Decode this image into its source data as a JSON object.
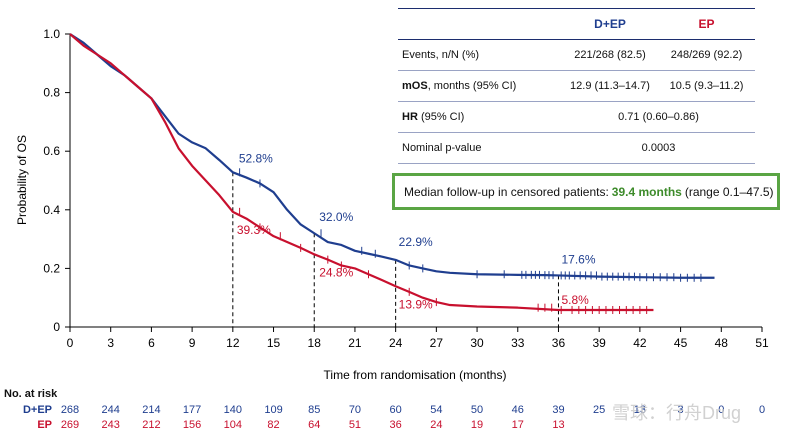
{
  "chart_data": {
    "type": "line",
    "xlabel": "Time from randomisation (months)",
    "ylabel": "Probability of OS",
    "xlim": [
      0,
      51
    ],
    "ylim": [
      0,
      1.0
    ],
    "xticks": [
      0,
      3,
      6,
      9,
      12,
      15,
      18,
      21,
      24,
      27,
      30,
      33,
      36,
      39,
      42,
      45,
      48,
      51
    ],
    "yticks": [
      0,
      0.2,
      0.4,
      0.6,
      0.8,
      1.0
    ],
    "ytick_labels": [
      "0",
      "0.2",
      "0.4",
      "0.6",
      "0.8",
      "1.0"
    ],
    "series": [
      {
        "name": "D+EP",
        "color": "#1f3e8f",
        "x": [
          0,
          1,
          2,
          3,
          4,
          5,
          6,
          7,
          8,
          9,
          10,
          11,
          12,
          13,
          14,
          15,
          16,
          17,
          18,
          19,
          20,
          21,
          22,
          23,
          24,
          25,
          26,
          27,
          28,
          30,
          33,
          35,
          36,
          39,
          42,
          45,
          47.5
        ],
        "y": [
          1.0,
          0.97,
          0.93,
          0.89,
          0.86,
          0.82,
          0.78,
          0.72,
          0.66,
          0.63,
          0.61,
          0.57,
          0.528,
          0.51,
          0.49,
          0.46,
          0.4,
          0.35,
          0.32,
          0.29,
          0.28,
          0.26,
          0.25,
          0.24,
          0.229,
          0.21,
          0.2,
          0.19,
          0.185,
          0.18,
          0.178,
          0.177,
          0.176,
          0.172,
          0.17,
          0.168,
          0.168
        ],
        "censor_x": [
          12.5,
          14,
          18.5,
          21.5,
          22.5,
          25,
          26,
          30,
          32,
          33.3,
          33.6,
          34,
          34.3,
          34.6,
          35,
          35.3,
          35.6,
          36.2,
          36.5,
          36.8,
          37.2,
          37.6,
          38,
          38.4,
          38.8,
          39.2,
          39.6,
          40,
          40.4,
          40.8,
          41.2,
          41.6,
          42,
          42.5,
          43,
          43.5,
          44,
          44.5,
          45,
          45.5,
          46,
          46.5
        ]
      },
      {
        "name": "EP",
        "color": "#c8102e",
        "x": [
          0,
          1,
          2,
          3,
          4,
          5,
          6,
          7,
          8,
          9,
          10,
          11,
          12,
          13,
          14,
          15,
          16,
          17,
          18,
          19,
          20,
          21,
          22,
          23,
          24,
          25,
          26,
          27,
          28,
          30,
          33,
          36,
          39,
          42,
          43
        ],
        "y": [
          1.0,
          0.96,
          0.93,
          0.9,
          0.86,
          0.82,
          0.78,
          0.7,
          0.61,
          0.55,
          0.5,
          0.45,
          0.393,
          0.37,
          0.34,
          0.31,
          0.29,
          0.27,
          0.248,
          0.23,
          0.21,
          0.2,
          0.18,
          0.16,
          0.139,
          0.12,
          0.1,
          0.085,
          0.075,
          0.07,
          0.066,
          0.058,
          0.058,
          0.058,
          0.058
        ],
        "censor_x": [
          12.5,
          14,
          15.5,
          17,
          19,
          20,
          22,
          25,
          27,
          34.5,
          35,
          35.5,
          36.2,
          37,
          37.5,
          38,
          38.5,
          39,
          39.5,
          40,
          40.5,
          41,
          41.5,
          42,
          42.5
        ]
      }
    ],
    "annotations": [
      {
        "text": "52.8%",
        "x": 12,
        "y": 0.528,
        "series": "D+EP"
      },
      {
        "text": "39.3%",
        "x": 12,
        "y": 0.393,
        "series": "EP"
      },
      {
        "text": "32.0%",
        "x": 18,
        "y": 0.32,
        "series": "D+EP"
      },
      {
        "text": "24.8%",
        "x": 18,
        "y": 0.248,
        "series": "EP"
      },
      {
        "text": "22.9%",
        "x": 24,
        "y": 0.229,
        "series": "D+EP"
      },
      {
        "text": "13.9%",
        "x": 24,
        "y": 0.139,
        "series": "EP"
      },
      {
        "text": "17.6%",
        "x": 36,
        "y": 0.176,
        "series": "D+EP"
      },
      {
        "text": "5.8%",
        "x": 36,
        "y": 0.058,
        "series": "EP"
      }
    ],
    "reference_lines_x": [
      12,
      18,
      24,
      36
    ]
  },
  "table": {
    "col_dep": "D+EP",
    "col_ep": "EP",
    "events_label": "Events, n/N (%)",
    "events_dep": "221/268 (82.5)",
    "events_ep": "248/269 (92.2)",
    "mos_label_bold": "mOS",
    "mos_label_rest": ", months (95% CI)",
    "mos_dep": "12.9 (11.3–14.7)",
    "mos_ep": "10.5 (9.3–11.2)",
    "hr_label_bold": "HR",
    "hr_label_rest": " (95% CI)",
    "hr_value": "0.71 (0.60–0.86)",
    "p_label": "Nominal p-value",
    "p_value": "0.0003"
  },
  "followup": {
    "prefix": "Median follow-up in censored patients:",
    "highlight": "39.4 months",
    "suffix": "(range 0.1–47.5)"
  },
  "risk_table": {
    "title": "No. at risk",
    "rows": [
      {
        "label": "D+EP",
        "values": [
          "268",
          "244",
          "214",
          "177",
          "140",
          "109",
          "85",
          "70",
          "60",
          "54",
          "50",
          "46",
          "39",
          "25",
          "13",
          "3",
          "0",
          "0"
        ]
      },
      {
        "label": "EP",
        "values": [
          "269",
          "243",
          "212",
          "156",
          "104",
          "82",
          "64",
          "51",
          "36",
          "24",
          "19",
          "17",
          "13",
          "",
          "",
          "",
          "",
          ""
        ]
      }
    ]
  },
  "watermark": "雪球：行舟Drug"
}
